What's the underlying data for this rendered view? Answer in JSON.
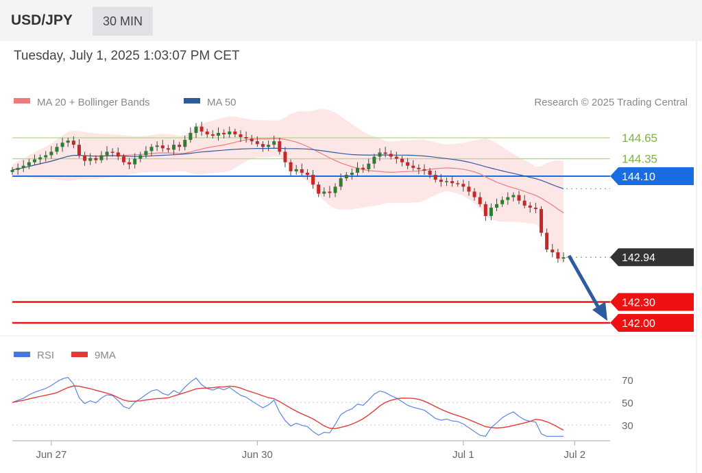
{
  "header": {
    "symbol": "USD/JPY",
    "timeframe": "30 MIN"
  },
  "timestamp": "Tuesday, July 1, 2025 1:03:07 PM CET",
  "legend": {
    "ma20": "MA 20 + Bollinger Bands",
    "ma50": "MA 50",
    "credit": "Research © 2025 Trading Central"
  },
  "colors": {
    "ma20": "#f07a7a",
    "ma50": "#2e5b9e",
    "up": "#2e7d32",
    "down": "#c62828",
    "resistance": "#7cb342",
    "pivot": "#1a6de0",
    "support": "#ee1111",
    "last": "#333333",
    "arrow": "#2e5b9e"
  },
  "chart_data": {
    "type": "candlestick",
    "title": "USD/JPY 30 MIN",
    "ylim": [
      141.8,
      145.1
    ],
    "levels": {
      "resistance": [
        {
          "label": "144.65",
          "value": 144.65
        },
        {
          "label": "144.35",
          "value": 144.35
        }
      ],
      "pivot": {
        "label": "144.10",
        "value": 144.1
      },
      "last": {
        "label": "142.94",
        "value": 142.94
      },
      "support": [
        {
          "label": "142.30",
          "value": 142.3
        },
        {
          "label": "142.00",
          "value": 142.0
        }
      ]
    },
    "closes": [
      144.19,
      144.22,
      144.25,
      144.3,
      144.34,
      144.37,
      144.4,
      144.45,
      144.52,
      144.58,
      144.61,
      144.55,
      144.4,
      144.32,
      144.36,
      144.33,
      144.4,
      144.45,
      144.44,
      144.38,
      144.3,
      144.27,
      144.35,
      144.4,
      144.46,
      144.52,
      144.54,
      144.5,
      144.48,
      144.55,
      144.52,
      144.62,
      144.72,
      144.81,
      144.74,
      144.7,
      144.68,
      144.72,
      144.7,
      144.74,
      144.7,
      144.66,
      144.64,
      144.6,
      144.56,
      144.52,
      144.55,
      144.6,
      144.45,
      144.3,
      144.17,
      144.2,
      144.15,
      144.12,
      143.98,
      143.85,
      143.88,
      143.86,
      143.95,
      144.07,
      144.12,
      144.15,
      144.22,
      144.2,
      144.28,
      144.38,
      144.44,
      144.42,
      144.38,
      144.35,
      144.3,
      144.25,
      144.22,
      144.2,
      144.18,
      144.12,
      144.05,
      144.02,
      144.03,
      144.0,
      143.99,
      143.95,
      143.88,
      143.8,
      143.7,
      143.53,
      143.65,
      143.7,
      143.76,
      143.8,
      143.83,
      143.75,
      143.68,
      143.65,
      143.63,
      143.29,
      143.05,
      143.01,
      142.92,
      142.94
    ],
    "xticks": [
      {
        "label": "Jun 27",
        "index": 7
      },
      {
        "label": "Jun 30",
        "index": 44
      },
      {
        "label": "Jul 1",
        "index": 81
      },
      {
        "label": "Jul 2",
        "index": 101
      }
    ],
    "rsi": {
      "legend_rsi": "RSI",
      "legend_ma": "9MA",
      "ylim": [
        20,
        75
      ],
      "levels": [
        {
          "label": "70",
          "value": 70
        },
        {
          "label": "50",
          "value": 50
        },
        {
          "label": "30",
          "value": 30
        }
      ]
    }
  }
}
